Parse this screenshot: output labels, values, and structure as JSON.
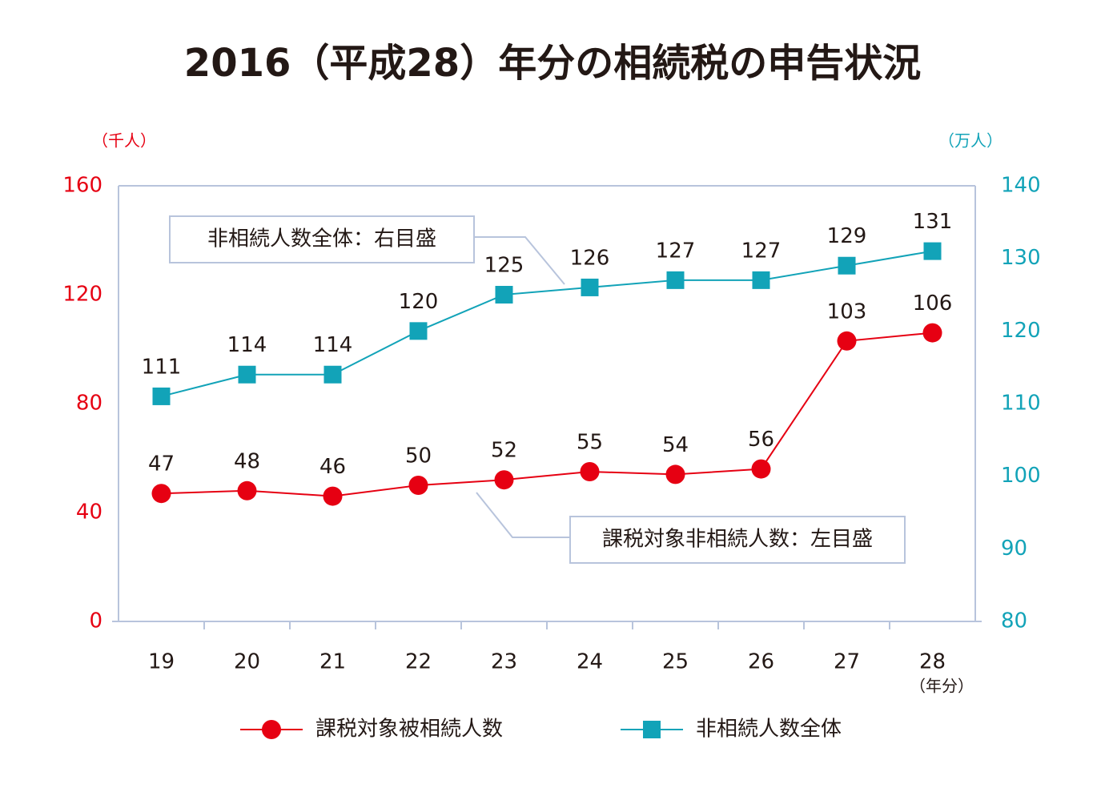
{
  "chart_data": {
    "type": "line",
    "title": "2016（平成28）年分の相続税の申告状況",
    "y_unit": "（千人）",
    "y2_unit": "（万人）",
    "x_unit": "（年分）",
    "categories": [
      "19",
      "20",
      "21",
      "22",
      "23",
      "24",
      "25",
      "26",
      "27",
      "28"
    ],
    "ylim": [
      0,
      160
    ],
    "yticks": [
      0,
      40,
      80,
      120,
      160
    ],
    "y2lim": [
      80,
      140
    ],
    "y2ticks": [
      80,
      90,
      100,
      110,
      120,
      130,
      140
    ],
    "y_color": "#e60012",
    "y2_color": "#12a3b8",
    "series": [
      {
        "name": "課税対象被相続人数",
        "color": "#e60012",
        "marker": "circle",
        "axis": "y",
        "values": [
          47,
          48,
          46,
          50,
          52,
          55,
          54,
          56,
          103,
          106
        ]
      },
      {
        "name": "非相続人数全体",
        "color": "#12a3b8",
        "marker": "square",
        "axis": "y2",
        "values": [
          111,
          114,
          114,
          120,
          125,
          126,
          127,
          127,
          129,
          131
        ]
      }
    ],
    "annotations": [
      "非相続人数全体：右目盛",
      "課税対象非相続人数：左目盛"
    ]
  }
}
